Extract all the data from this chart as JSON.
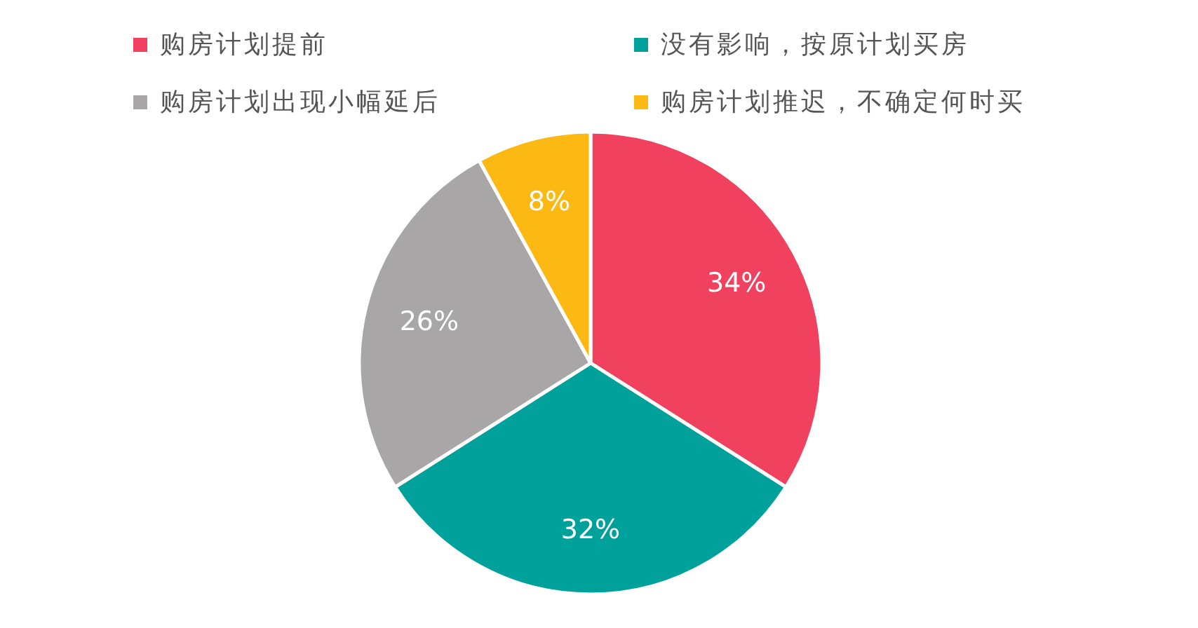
{
  "chart_data": {
    "type": "pie",
    "categories": [
      "购房计划提前",
      "没有影响，按原计划买房",
      "购房计划出现小幅延后",
      "购房计划推迟，不确定何时买"
    ],
    "values": [
      34,
      32,
      26,
      8
    ],
    "colors": [
      "#f0415e",
      "#00a19a",
      "#a9a6a8",
      "#fdb913"
    ],
    "value_labels": [
      "34%",
      "32%",
      "26%",
      "8%"
    ],
    "legend": "top"
  }
}
